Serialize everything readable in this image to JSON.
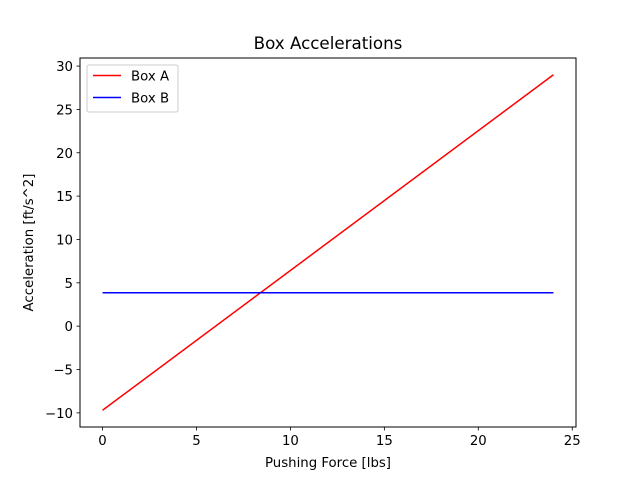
{
  "chart_data": {
    "type": "line",
    "title": "Box Accelerations",
    "xlabel": "Pushing Force [lbs]",
    "ylabel": "Acceleration [ft/s^2]",
    "xlim": [
      -1.2,
      25.2
    ],
    "ylim": [
      -11.63,
      30.93
    ],
    "xticks": [
      0,
      5,
      10,
      15,
      20,
      25
    ],
    "xtick_labels": [
      "0",
      "5",
      "10",
      "15",
      "20",
      "25"
    ],
    "yticks": [
      -10,
      -5,
      0,
      5,
      10,
      15,
      20,
      25,
      30
    ],
    "ytick_labels": [
      "−10",
      "−5",
      "0",
      "5",
      "10",
      "15",
      "20",
      "25",
      "30"
    ],
    "grid": false,
    "legend_position": "top-left",
    "series": [
      {
        "name": "Box A",
        "color": "#ff0000",
        "x": [
          0,
          24
        ],
        "y": [
          -9.7,
          29.0
        ]
      },
      {
        "name": "Box B",
        "color": "#0000ff",
        "x": [
          0,
          24
        ],
        "y": [
          3.86,
          3.86
        ]
      }
    ]
  }
}
